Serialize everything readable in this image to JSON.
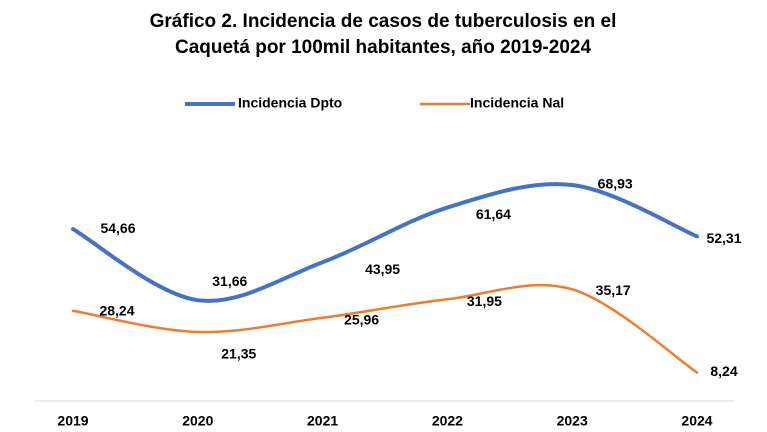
{
  "chart_data": {
    "type": "line",
    "title": [
      "Gráfico 2. Incidencia de casos de tuberculosis en el",
      "Caquetá por 100mil habitantes, año 2019-2024"
    ],
    "categories": [
      "2019",
      "2020",
      "2021",
      "2022",
      "2023",
      "2024"
    ],
    "series": [
      {
        "name": "Incidencia Dpto",
        "color": "#4472c4",
        "values": [
          54.66,
          31.66,
          43.95,
          61.64,
          68.93,
          52.31
        ],
        "value_labels": [
          "54,66",
          "31,66",
          "43,95",
          "61,64",
          "68,93",
          "52,31"
        ]
      },
      {
        "name": "Incidencia Nal",
        "color": "#ed7d31",
        "values": [
          28.24,
          21.35,
          25.96,
          31.95,
          35.17,
          8.24
        ],
        "value_labels": [
          "28,24",
          "21,35",
          "25,96",
          "31,95",
          "35,17",
          "8,24"
        ]
      }
    ],
    "legend": "top"
  }
}
